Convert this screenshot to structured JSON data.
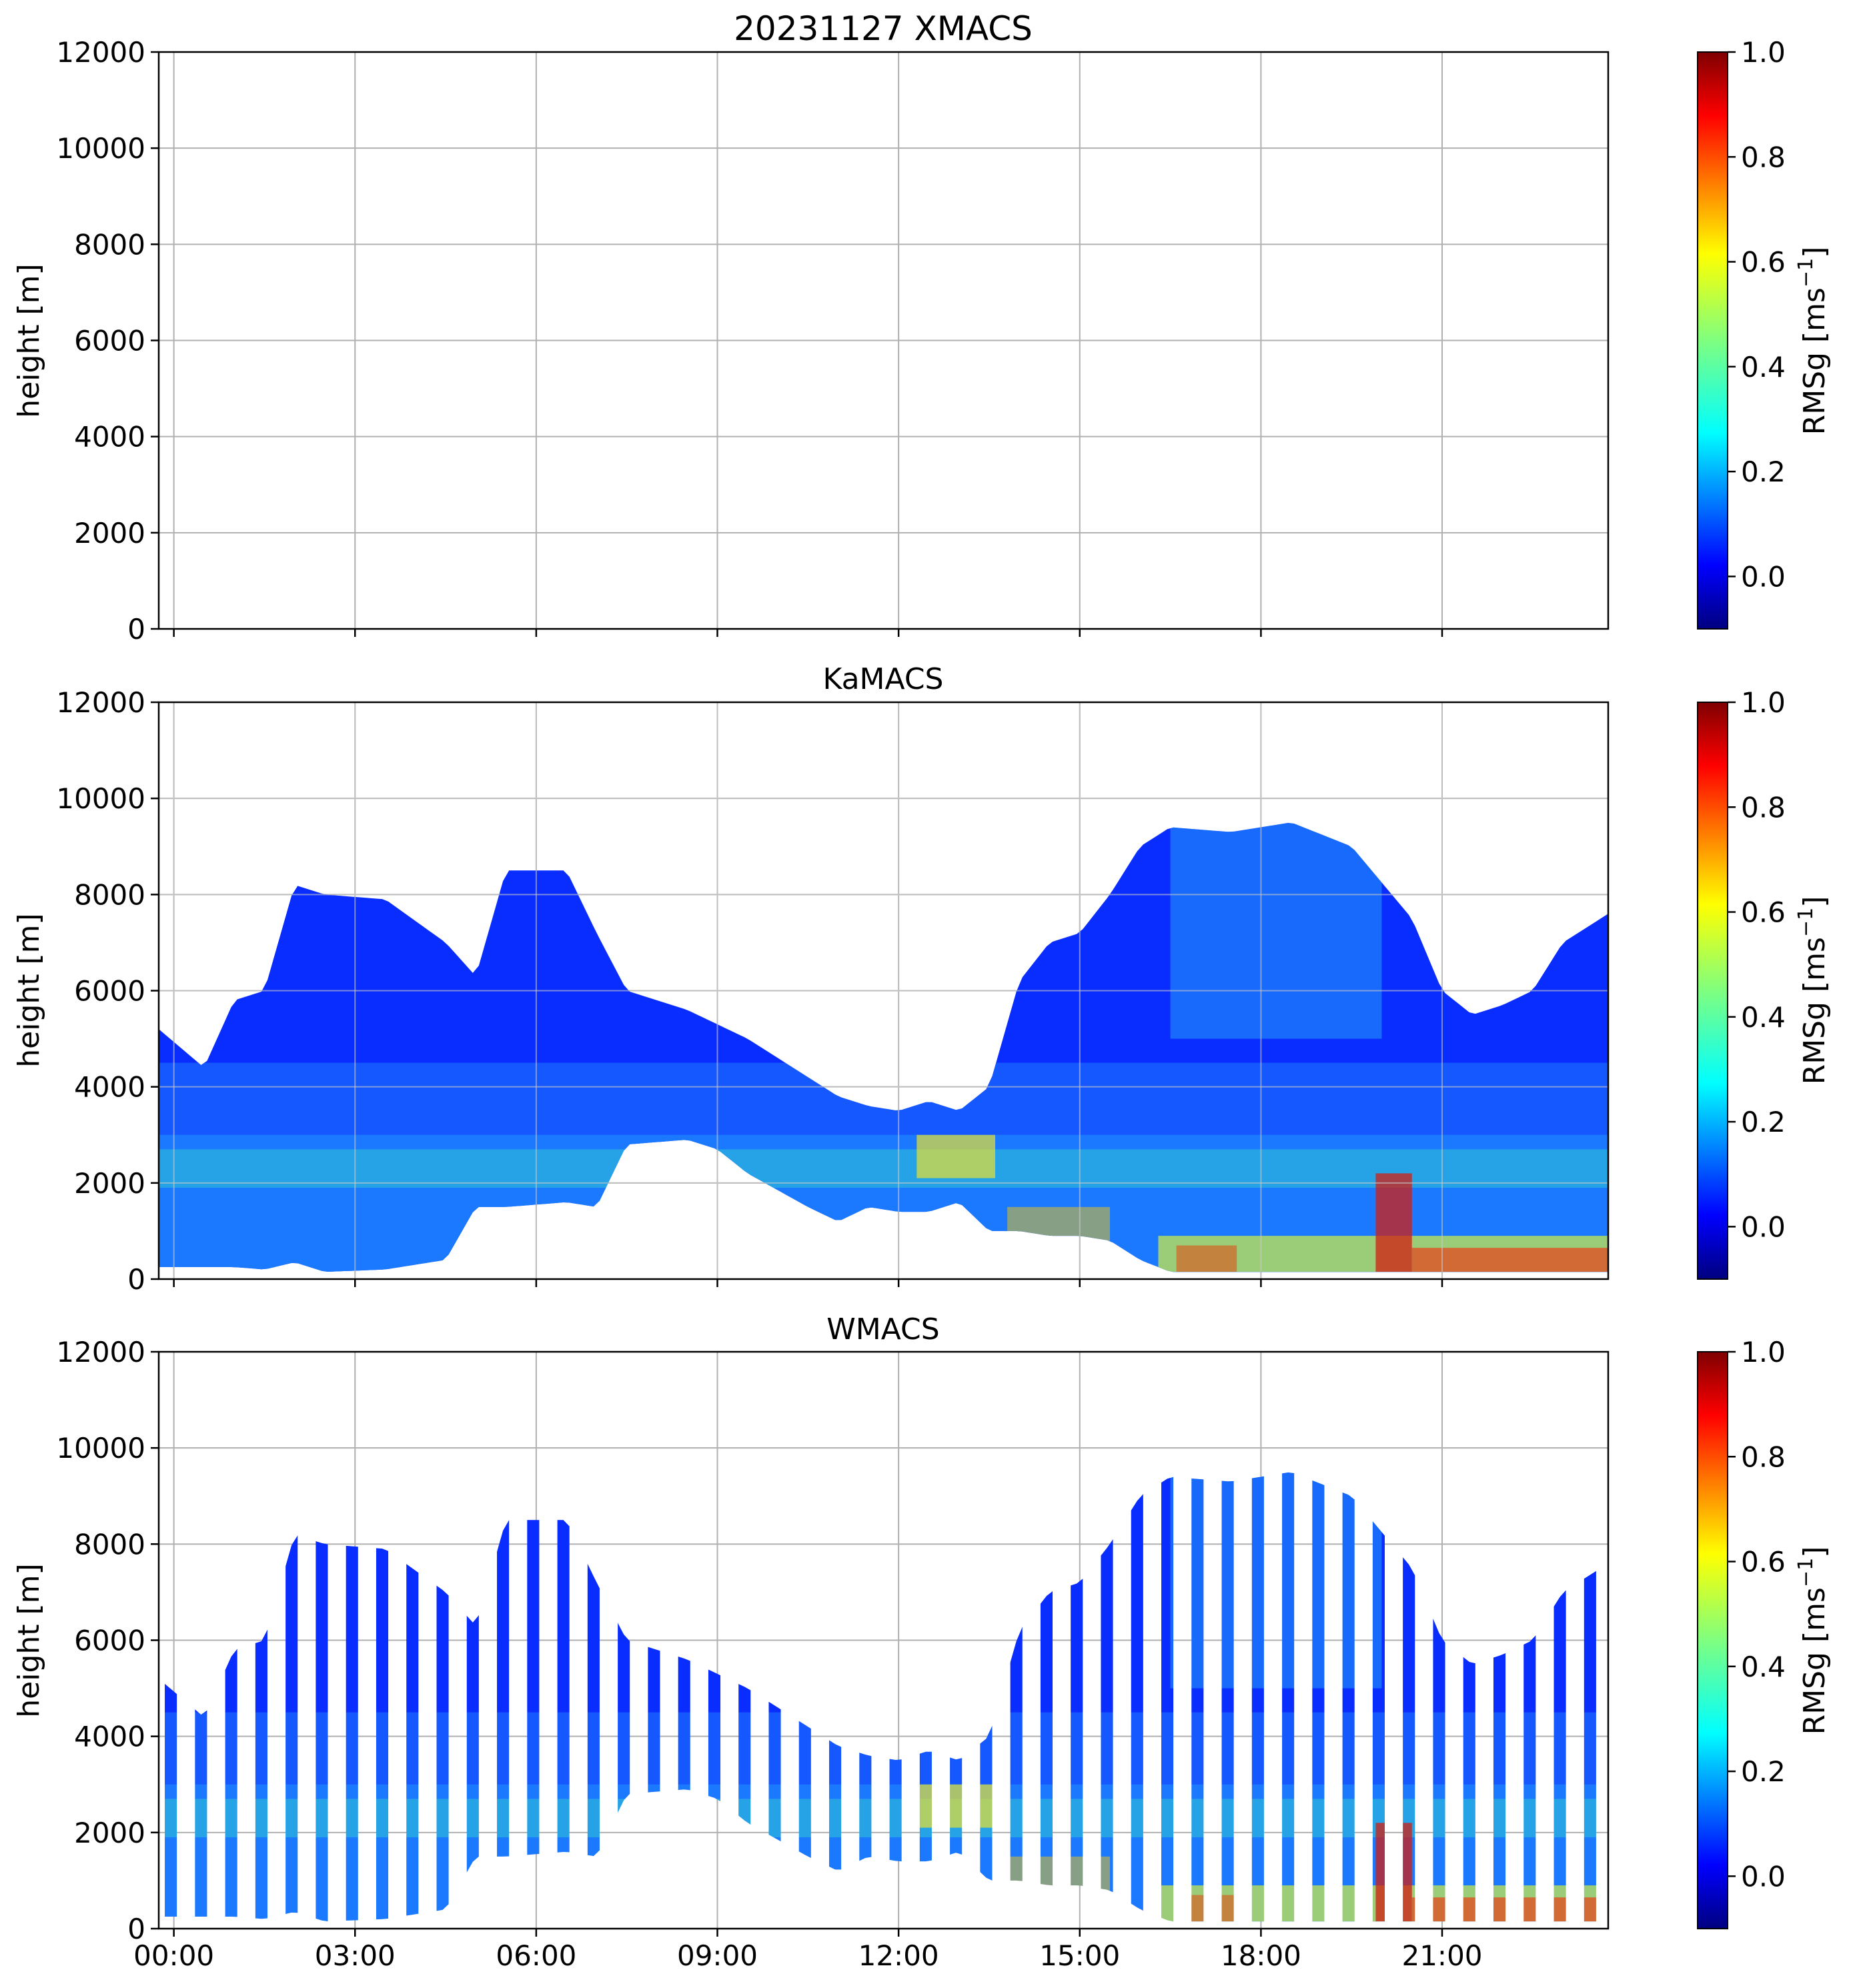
{
  "chart_data": [
    {
      "type": "heatmap",
      "title": "20231127 XMACS",
      "instrument": "XMACS",
      "xlabel": "",
      "ylabel": "height [m]",
      "xlim_hours": [
        -0.25,
        23.75
      ],
      "ylim": [
        0,
        12000
      ],
      "yticks": [
        0,
        2000,
        4000,
        6000,
        8000,
        10000,
        12000
      ],
      "xtick_labels": [],
      "grid": true,
      "colorbar": {
        "label_base": "RMSg [ms",
        "label_exp": "−1",
        "label_end": "]",
        "range": [
          -0.1,
          1.0
        ],
        "ticks": [
          "0.0",
          "0.2",
          "0.4",
          "0.6",
          "0.8",
          "1.0"
        ]
      },
      "data_present": false,
      "cloud_profile": []
    },
    {
      "type": "heatmap",
      "title": "KaMACS",
      "instrument": "KaMACS",
      "xlabel": "",
      "ylabel": "height [m]",
      "xlim_hours": [
        -0.25,
        23.75
      ],
      "ylim": [
        0,
        12000
      ],
      "yticks": [
        0,
        2000,
        4000,
        6000,
        8000,
        10000,
        12000
      ],
      "xtick_labels": [],
      "grid": true,
      "colorbar": {
        "label_base": "RMSg [ms",
        "label_exp": "−1",
        "label_end": "]",
        "range": [
          -0.1,
          1.0
        ],
        "ticks": [
          "0.0",
          "0.2",
          "0.4",
          "0.6",
          "0.8",
          "1.0"
        ]
      },
      "data_present": true,
      "cloud_profile": [
        {
          "t": -0.25,
          "base": 250,
          "top": 5200
        },
        {
          "t": 0.5,
          "base": 250,
          "top": 4400
        },
        {
          "t": 1.0,
          "base": 250,
          "top": 5800
        },
        {
          "t": 1.5,
          "base": 200,
          "top": 6000
        },
        {
          "t": 2.0,
          "base": 350,
          "top": 8200
        },
        {
          "t": 2.5,
          "base": 150,
          "top": 8000
        },
        {
          "t": 3.5,
          "base": 200,
          "top": 7900
        },
        {
          "t": 4.5,
          "base": 400,
          "top": 7000
        },
        {
          "t": 5.0,
          "base": 1500,
          "top": 6300
        },
        {
          "t": 5.5,
          "base": 1500,
          "top": 8500
        },
        {
          "t": 6.5,
          "base": 1600,
          "top": 8500
        },
        {
          "t": 7.0,
          "base": 1500,
          "top": 7200
        },
        {
          "t": 7.5,
          "base": 2800,
          "top": 6000
        },
        {
          "t": 8.5,
          "base": 2900,
          "top": 5600
        },
        {
          "t": 9.0,
          "base": 2700,
          "top": 5300
        },
        {
          "t": 9.5,
          "base": 2200,
          "top": 5000
        },
        {
          "t": 10.5,
          "base": 1500,
          "top": 4200
        },
        {
          "t": 11.0,
          "base": 1200,
          "top": 3800
        },
        {
          "t": 11.5,
          "base": 1500,
          "top": 3600
        },
        {
          "t": 12.0,
          "base": 1400,
          "top": 3500
        },
        {
          "t": 12.5,
          "base": 1400,
          "top": 3700
        },
        {
          "t": 13.0,
          "base": 1600,
          "top": 3500
        },
        {
          "t": 13.5,
          "base": 1000,
          "top": 4000
        },
        {
          "t": 14.0,
          "base": 1000,
          "top": 6200
        },
        {
          "t": 14.5,
          "base": 900,
          "top": 7000
        },
        {
          "t": 15.0,
          "base": 900,
          "top": 7200
        },
        {
          "t": 15.5,
          "base": 800,
          "top": 8000
        },
        {
          "t": 16.0,
          "base": 400,
          "top": 9000
        },
        {
          "t": 16.5,
          "base": 150,
          "top": 9400
        },
        {
          "t": 17.5,
          "base": 150,
          "top": 9300
        },
        {
          "t": 18.5,
          "base": 150,
          "top": 9500
        },
        {
          "t": 19.5,
          "base": 150,
          "top": 9000
        },
        {
          "t": 20.5,
          "base": 150,
          "top": 7500
        },
        {
          "t": 21.0,
          "base": 150,
          "top": 6000
        },
        {
          "t": 21.5,
          "base": 150,
          "top": 5500
        },
        {
          "t": 22.0,
          "base": 150,
          "top": 5700
        },
        {
          "t": 22.5,
          "base": 150,
          "top": 6000
        },
        {
          "t": 23.0,
          "base": 150,
          "top": 7000
        },
        {
          "t": 23.75,
          "base": 150,
          "top": 7600
        }
      ]
    },
    {
      "type": "heatmap",
      "title": "WMACS",
      "instrument": "WMACS",
      "xlabel": "",
      "ylabel": "height [m]",
      "xlim_hours": [
        -0.25,
        23.75
      ],
      "ylim": [
        0,
        12000
      ],
      "yticks": [
        0,
        2000,
        4000,
        6000,
        8000,
        10000,
        12000
      ],
      "xtick_labels": [
        "00:00",
        "03:00",
        "06:00",
        "09:00",
        "12:00",
        "15:00",
        "18:00",
        "21:00"
      ],
      "xtick_hours": [
        0,
        3,
        6,
        9,
        12,
        15,
        18,
        21
      ],
      "grid": true,
      "colorbar": {
        "label_base": "RMSg [ms",
        "label_exp": "−1",
        "label_end": "]",
        "range": [
          -0.1,
          1.0
        ],
        "ticks": [
          "0.0",
          "0.2",
          "0.4",
          "0.6",
          "0.8",
          "1.0"
        ]
      },
      "data_present": true,
      "stripe_period_hours": 0.5,
      "stripe_width_hours": 0.2,
      "cloud_profile": "same as KaMACS (sampled in stripes)"
    }
  ]
}
